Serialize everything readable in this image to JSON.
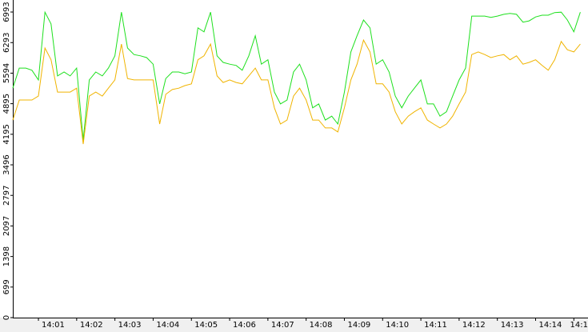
{
  "chart_data": {
    "type": "line",
    "x": [
      0.33,
      0.5,
      0.67,
      0.83,
      1,
      1.17,
      1.33,
      1.5,
      1.67,
      1.83,
      2,
      2.17,
      2.33,
      2.5,
      2.67,
      2.83,
      3,
      3.17,
      3.33,
      3.5,
      3.67,
      3.83,
      4,
      4.17,
      4.33,
      4.5,
      4.67,
      4.83,
      5,
      5.17,
      5.33,
      5.5,
      5.67,
      5.83,
      6,
      6.17,
      6.33,
      6.5,
      6.67,
      6.83,
      7,
      7.17,
      7.33,
      7.5,
      7.67,
      7.83,
      8,
      8.17,
      8.33,
      8.5,
      8.67,
      8.83,
      9,
      9.17,
      9.33,
      9.5,
      9.67,
      9.83,
      10,
      10.17,
      10.33,
      10.5,
      10.67,
      10.83,
      11,
      11.17,
      11.33,
      11.5,
      11.67,
      11.83,
      12,
      12.17,
      12.33,
      12.5,
      12.67,
      12.83,
      13,
      13.17,
      13.33,
      13.5,
      13.67,
      13.83,
      14,
      14.17,
      14.33,
      14.5,
      14.67,
      14.83,
      15,
      15.17
    ],
    "series": [
      {
        "color": "#1ee01e",
        "values": [
          5250,
          5710,
          5710,
          5660,
          5440,
          6990,
          6720,
          5530,
          5620,
          5530,
          5710,
          4060,
          5440,
          5620,
          5530,
          5710,
          5990,
          6990,
          6170,
          6020,
          5990,
          5950,
          5800,
          4890,
          5470,
          5620,
          5620,
          5580,
          5620,
          6630,
          6540,
          6990,
          5990,
          5840,
          5800,
          5770,
          5660,
          5990,
          6450,
          5800,
          5900,
          5160,
          4890,
          4980,
          5620,
          5800,
          5440,
          4800,
          4890,
          4520,
          4610,
          4430,
          5160,
          6080,
          6450,
          6810,
          6630,
          5800,
          5900,
          5620,
          5070,
          4800,
          5070,
          5250,
          5440,
          4890,
          4890,
          4610,
          4710,
          5070,
          5440,
          5710,
          6900,
          6900,
          6900,
          6870,
          6900,
          6940,
          6960,
          6940,
          6760,
          6790,
          6880,
          6920,
          6920,
          6980,
          6990,
          6810,
          6540,
          6990
        ]
      },
      {
        "color": "#f0b400",
        "values": [
          4520,
          4980,
          4980,
          4980,
          5070,
          6170,
          5900,
          5160,
          5160,
          5160,
          5250,
          3970,
          5070,
          5160,
          5070,
          5250,
          5440,
          6260,
          5470,
          5440,
          5440,
          5440,
          5440,
          4430,
          5110,
          5220,
          5250,
          5310,
          5350,
          5900,
          5990,
          6260,
          5530,
          5380,
          5440,
          5380,
          5350,
          5530,
          5710,
          5440,
          5440,
          4800,
          4430,
          4520,
          5070,
          5250,
          4980,
          4520,
          4520,
          4340,
          4340,
          4250,
          4800,
          5440,
          5800,
          6350,
          6080,
          5350,
          5350,
          5160,
          4710,
          4430,
          4610,
          4710,
          4800,
          4520,
          4430,
          4340,
          4430,
          4610,
          4890,
          5160,
          6020,
          6080,
          6020,
          5950,
          5990,
          6020,
          5900,
          5990,
          5800,
          5840,
          5900,
          5770,
          5660,
          5900,
          6320,
          6130,
          6080,
          6260
        ]
      }
    ],
    "xlim": [
      0.33,
      15.37
    ],
    "xticks": [
      {
        "value": 1,
        "label": "14:01"
      },
      {
        "value": 2,
        "label": "14:02"
      },
      {
        "value": 3,
        "label": "14:03"
      },
      {
        "value": 4,
        "label": "14:04"
      },
      {
        "value": 5,
        "label": "14:05"
      },
      {
        "value": 6,
        "label": "14:06"
      },
      {
        "value": 7,
        "label": "14:07"
      },
      {
        "value": 8,
        "label": "14:08"
      },
      {
        "value": 9,
        "label": "14:09"
      },
      {
        "value": 10,
        "label": "14:10"
      },
      {
        "value": 11,
        "label": "14:11"
      },
      {
        "value": 12,
        "label": "14:12"
      },
      {
        "value": 13,
        "label": "14:13"
      },
      {
        "value": 14,
        "label": "14:14"
      },
      {
        "value": 15,
        "label": "14:1"
      }
    ],
    "ylim": [
      0,
      7268
    ],
    "yticks": [
      0,
      699,
      1398,
      2097,
      2797,
      3496,
      4195,
      4895,
      5594,
      6293,
      6993
    ]
  }
}
